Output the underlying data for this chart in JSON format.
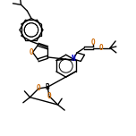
{
  "bg_color": "#ffffff",
  "line_color": "#000000",
  "bond_width": 1.0,
  "figsize": [
    1.52,
    1.52
  ],
  "dpi": 100,
  "xlim": [
    0,
    10
  ],
  "ylim": [
    0,
    10
  ]
}
